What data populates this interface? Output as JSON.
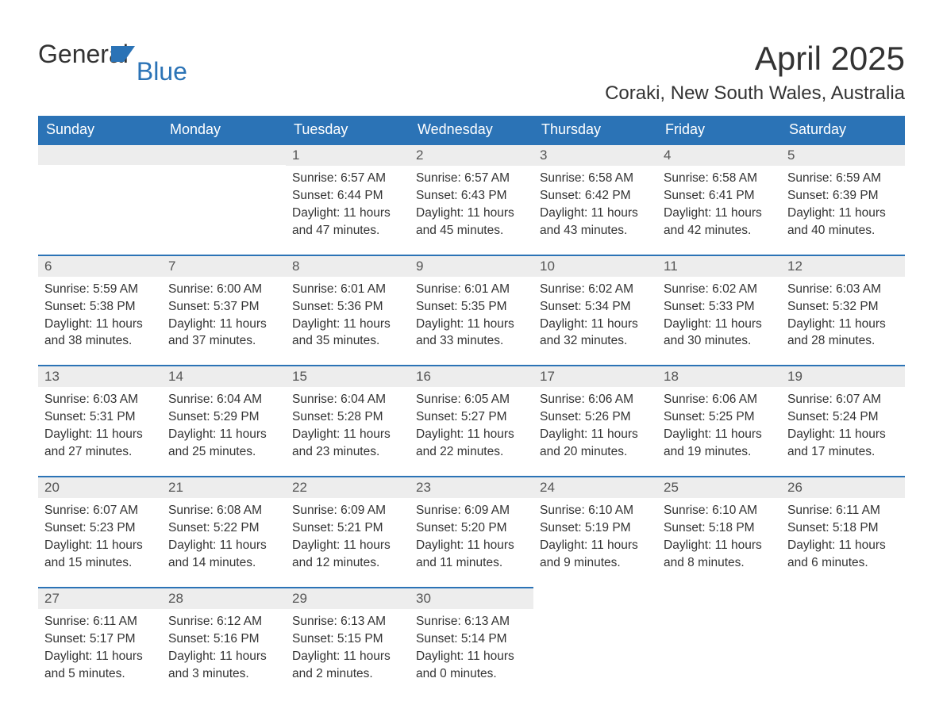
{
  "logo": {
    "text1": "General",
    "text2": "Blue",
    "accent": "#2b73b6"
  },
  "title": "April 2025",
  "location": "Coraki, New South Wales, Australia",
  "colors": {
    "header_bg": "#2b73b6",
    "header_text": "#ffffff",
    "daynum_bg": "#ededed",
    "text": "#333333",
    "background": "#ffffff"
  },
  "typography": {
    "title_fontsize": 42,
    "location_fontsize": 24,
    "header_fontsize": 18,
    "daynum_fontsize": 17,
    "body_fontsize": 15.5,
    "logo_fontsize": 32
  },
  "weekdays": [
    "Sunday",
    "Monday",
    "Tuesday",
    "Wednesday",
    "Thursday",
    "Friday",
    "Saturday"
  ],
  "weeks": [
    [
      null,
      null,
      {
        "n": "1",
        "sr": "Sunrise: 6:57 AM",
        "ss": "Sunset: 6:44 PM",
        "d1": "Daylight: 11 hours",
        "d2": "and 47 minutes."
      },
      {
        "n": "2",
        "sr": "Sunrise: 6:57 AM",
        "ss": "Sunset: 6:43 PM",
        "d1": "Daylight: 11 hours",
        "d2": "and 45 minutes."
      },
      {
        "n": "3",
        "sr": "Sunrise: 6:58 AM",
        "ss": "Sunset: 6:42 PM",
        "d1": "Daylight: 11 hours",
        "d2": "and 43 minutes."
      },
      {
        "n": "4",
        "sr": "Sunrise: 6:58 AM",
        "ss": "Sunset: 6:41 PM",
        "d1": "Daylight: 11 hours",
        "d2": "and 42 minutes."
      },
      {
        "n": "5",
        "sr": "Sunrise: 6:59 AM",
        "ss": "Sunset: 6:39 PM",
        "d1": "Daylight: 11 hours",
        "d2": "and 40 minutes."
      }
    ],
    [
      {
        "n": "6",
        "sr": "Sunrise: 5:59 AM",
        "ss": "Sunset: 5:38 PM",
        "d1": "Daylight: 11 hours",
        "d2": "and 38 minutes."
      },
      {
        "n": "7",
        "sr": "Sunrise: 6:00 AM",
        "ss": "Sunset: 5:37 PM",
        "d1": "Daylight: 11 hours",
        "d2": "and 37 minutes."
      },
      {
        "n": "8",
        "sr": "Sunrise: 6:01 AM",
        "ss": "Sunset: 5:36 PM",
        "d1": "Daylight: 11 hours",
        "d2": "and 35 minutes."
      },
      {
        "n": "9",
        "sr": "Sunrise: 6:01 AM",
        "ss": "Sunset: 5:35 PM",
        "d1": "Daylight: 11 hours",
        "d2": "and 33 minutes."
      },
      {
        "n": "10",
        "sr": "Sunrise: 6:02 AM",
        "ss": "Sunset: 5:34 PM",
        "d1": "Daylight: 11 hours",
        "d2": "and 32 minutes."
      },
      {
        "n": "11",
        "sr": "Sunrise: 6:02 AM",
        "ss": "Sunset: 5:33 PM",
        "d1": "Daylight: 11 hours",
        "d2": "and 30 minutes."
      },
      {
        "n": "12",
        "sr": "Sunrise: 6:03 AM",
        "ss": "Sunset: 5:32 PM",
        "d1": "Daylight: 11 hours",
        "d2": "and 28 minutes."
      }
    ],
    [
      {
        "n": "13",
        "sr": "Sunrise: 6:03 AM",
        "ss": "Sunset: 5:31 PM",
        "d1": "Daylight: 11 hours",
        "d2": "and 27 minutes."
      },
      {
        "n": "14",
        "sr": "Sunrise: 6:04 AM",
        "ss": "Sunset: 5:29 PM",
        "d1": "Daylight: 11 hours",
        "d2": "and 25 minutes."
      },
      {
        "n": "15",
        "sr": "Sunrise: 6:04 AM",
        "ss": "Sunset: 5:28 PM",
        "d1": "Daylight: 11 hours",
        "d2": "and 23 minutes."
      },
      {
        "n": "16",
        "sr": "Sunrise: 6:05 AM",
        "ss": "Sunset: 5:27 PM",
        "d1": "Daylight: 11 hours",
        "d2": "and 22 minutes."
      },
      {
        "n": "17",
        "sr": "Sunrise: 6:06 AM",
        "ss": "Sunset: 5:26 PM",
        "d1": "Daylight: 11 hours",
        "d2": "and 20 minutes."
      },
      {
        "n": "18",
        "sr": "Sunrise: 6:06 AM",
        "ss": "Sunset: 5:25 PM",
        "d1": "Daylight: 11 hours",
        "d2": "and 19 minutes."
      },
      {
        "n": "19",
        "sr": "Sunrise: 6:07 AM",
        "ss": "Sunset: 5:24 PM",
        "d1": "Daylight: 11 hours",
        "d2": "and 17 minutes."
      }
    ],
    [
      {
        "n": "20",
        "sr": "Sunrise: 6:07 AM",
        "ss": "Sunset: 5:23 PM",
        "d1": "Daylight: 11 hours",
        "d2": "and 15 minutes."
      },
      {
        "n": "21",
        "sr": "Sunrise: 6:08 AM",
        "ss": "Sunset: 5:22 PM",
        "d1": "Daylight: 11 hours",
        "d2": "and 14 minutes."
      },
      {
        "n": "22",
        "sr": "Sunrise: 6:09 AM",
        "ss": "Sunset: 5:21 PM",
        "d1": "Daylight: 11 hours",
        "d2": "and 12 minutes."
      },
      {
        "n": "23",
        "sr": "Sunrise: 6:09 AM",
        "ss": "Sunset: 5:20 PM",
        "d1": "Daylight: 11 hours",
        "d2": "and 11 minutes."
      },
      {
        "n": "24",
        "sr": "Sunrise: 6:10 AM",
        "ss": "Sunset: 5:19 PM",
        "d1": "Daylight: 11 hours",
        "d2": "and 9 minutes."
      },
      {
        "n": "25",
        "sr": "Sunrise: 6:10 AM",
        "ss": "Sunset: 5:18 PM",
        "d1": "Daylight: 11 hours",
        "d2": "and 8 minutes."
      },
      {
        "n": "26",
        "sr": "Sunrise: 6:11 AM",
        "ss": "Sunset: 5:18 PM",
        "d1": "Daylight: 11 hours",
        "d2": "and 6 minutes."
      }
    ],
    [
      {
        "n": "27",
        "sr": "Sunrise: 6:11 AM",
        "ss": "Sunset: 5:17 PM",
        "d1": "Daylight: 11 hours",
        "d2": "and 5 minutes."
      },
      {
        "n": "28",
        "sr": "Sunrise: 6:12 AM",
        "ss": "Sunset: 5:16 PM",
        "d1": "Daylight: 11 hours",
        "d2": "and 3 minutes."
      },
      {
        "n": "29",
        "sr": "Sunrise: 6:13 AM",
        "ss": "Sunset: 5:15 PM",
        "d1": "Daylight: 11 hours",
        "d2": "and 2 minutes."
      },
      {
        "n": "30",
        "sr": "Sunrise: 6:13 AM",
        "ss": "Sunset: 5:14 PM",
        "d1": "Daylight: 11 hours",
        "d2": "and 0 minutes."
      },
      null,
      null,
      null
    ]
  ]
}
